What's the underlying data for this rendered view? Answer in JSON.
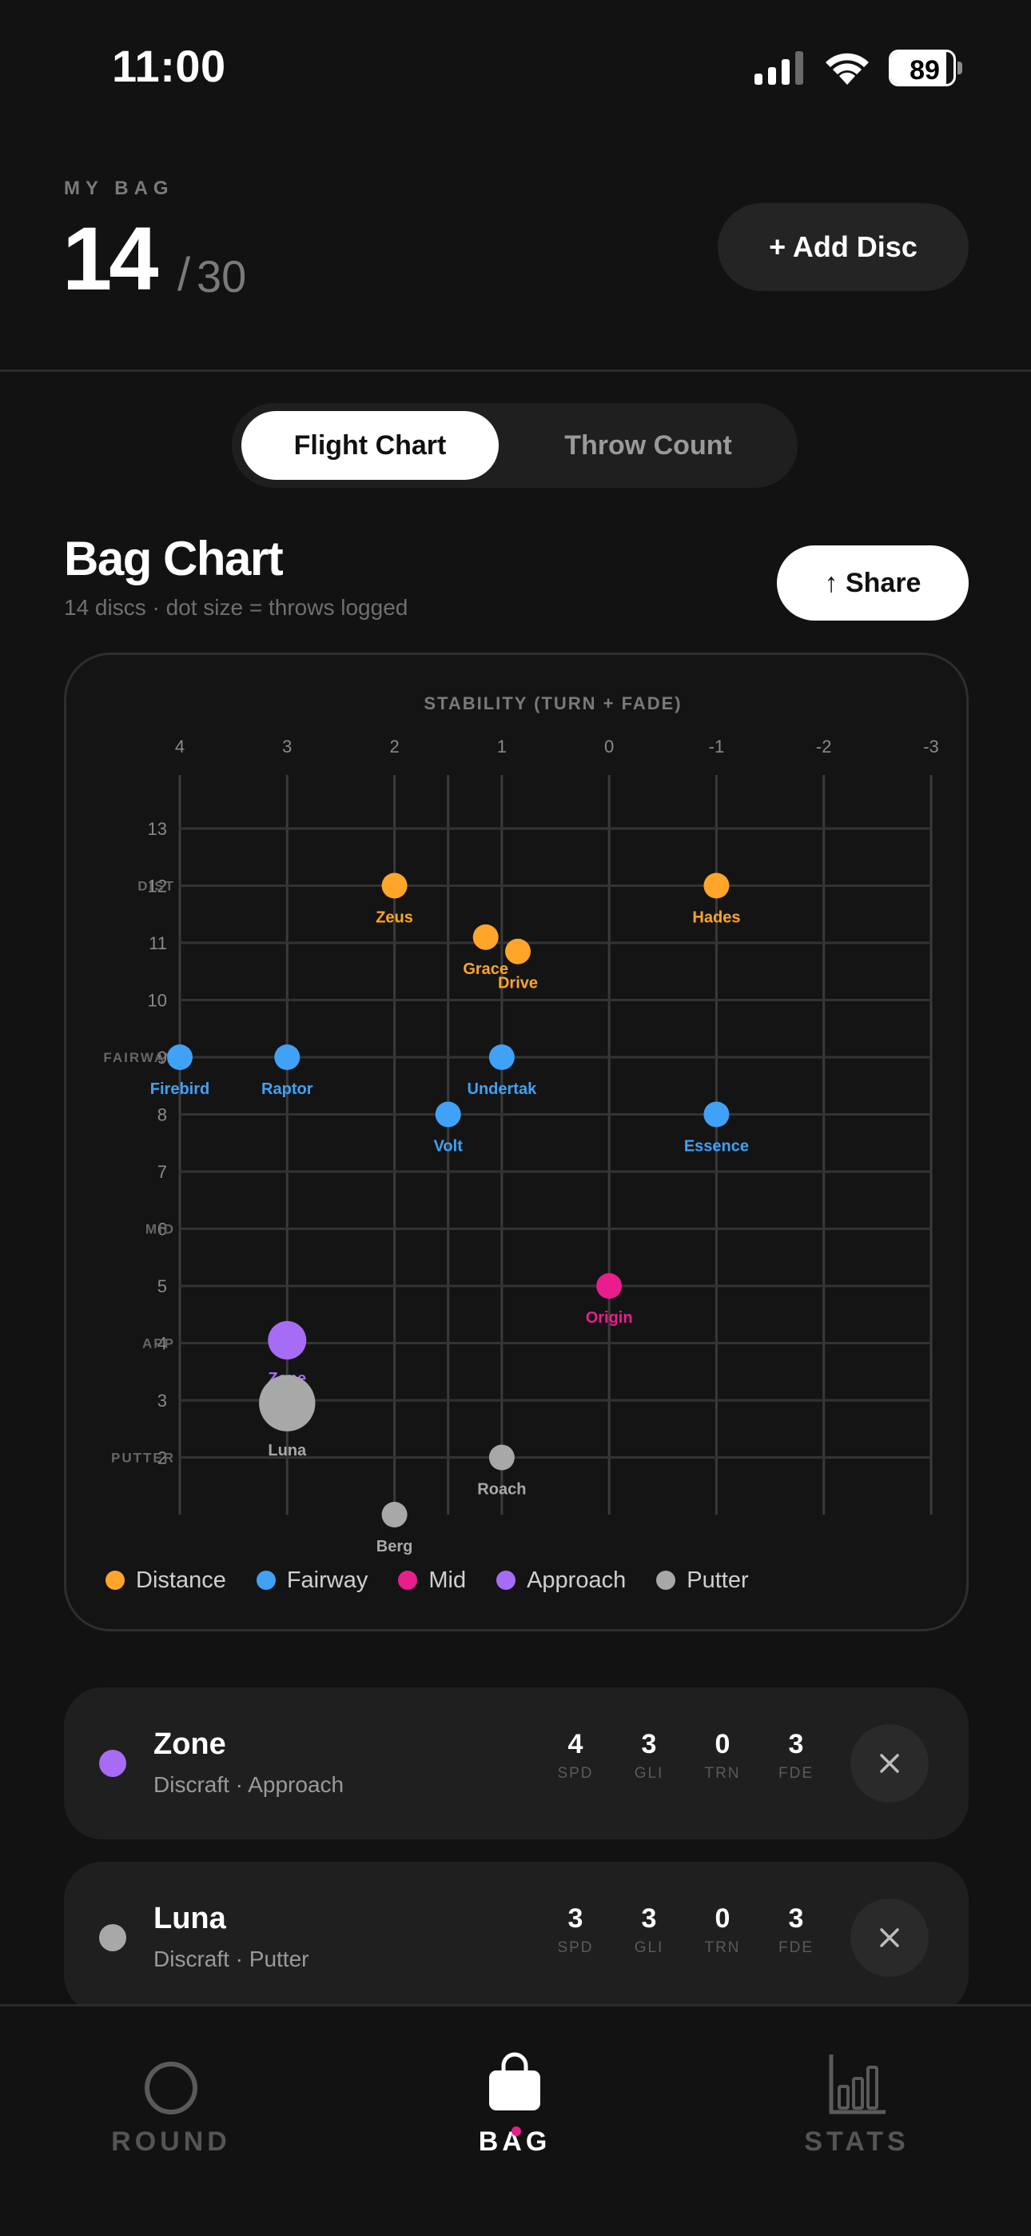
{
  "status_bar": {
    "time": "11:00",
    "battery": "89",
    "battery_level": 0.89
  },
  "header": {
    "eyebrow": "MY BAG",
    "count": "14",
    "separator": "/",
    "capacity": "30",
    "add_button": "+ Add Disc"
  },
  "segmented": {
    "options": [
      "Flight Chart",
      "Throw Count"
    ],
    "active": "Flight Chart"
  },
  "chart_section": {
    "title": "Bag Chart",
    "subtitle": "14 discs · dot size = throws logged",
    "share_button": "↑ Share"
  },
  "colors": {
    "distance": "#FFA52A",
    "fairway": "#3FA2F7",
    "mid": "#E91E8C",
    "approach": "#A66CF5",
    "putter": "#A8A8A8",
    "background": "#121212",
    "card": "#1F1F1F"
  },
  "chart_data": {
    "type": "scatter",
    "title": "",
    "xlabel": "STABILITY (TURN + FADE)",
    "ylabel": "",
    "x_ticks": [
      "4",
      "3",
      "2",
      "1",
      "0",
      "-1",
      "-2",
      "-3"
    ],
    "xlim": [
      4,
      -3
    ],
    "y_ticks": [
      "13",
      "12",
      "11",
      "10",
      "9",
      "8",
      "7",
      "6",
      "5",
      "4",
      "3",
      "2"
    ],
    "ylim": [
      1,
      13
    ],
    "category_labels": [
      {
        "label": "DIST",
        "y": 12
      },
      {
        "label": "FAIRWAY",
        "y": 9
      },
      {
        "label": "MID",
        "y": 6
      },
      {
        "label": "APP",
        "y": 4
      },
      {
        "label": "PUTTER",
        "y": 2
      }
    ],
    "grid": true,
    "points": [
      {
        "name": "Zeus",
        "x": 2,
        "y": 12,
        "group": "distance",
        "size": 1
      },
      {
        "name": "Hades",
        "x": -1,
        "y": 12,
        "group": "distance",
        "size": 1
      },
      {
        "name": "Grace",
        "x": 1.15,
        "y": 11.1,
        "group": "distance",
        "size": 1
      },
      {
        "name": "Drive",
        "x": 0.85,
        "y": 10.85,
        "group": "distance",
        "size": 1
      },
      {
        "name": "Firebird",
        "x": 4,
        "y": 9,
        "group": "fairway",
        "size": 1
      },
      {
        "name": "Raptor",
        "x": 3,
        "y": 9,
        "group": "fairway",
        "size": 1
      },
      {
        "name": "Undertak",
        "x": 1,
        "y": 9,
        "group": "fairway",
        "size": 1
      },
      {
        "name": "Volt",
        "x": 1.5,
        "y": 8,
        "group": "fairway",
        "size": 1
      },
      {
        "name": "Essence",
        "x": -1,
        "y": 8,
        "group": "fairway",
        "size": 1
      },
      {
        "name": "Origin",
        "x": 0,
        "y": 5,
        "group": "mid",
        "size": 1
      },
      {
        "name": "Zone",
        "x": 3,
        "y": 4.05,
        "group": "approach",
        "size": 1.5
      },
      {
        "name": "Luna",
        "x": 3,
        "y": 2.95,
        "group": "putter",
        "size": 2.2
      },
      {
        "name": "Roach",
        "x": 1,
        "y": 2,
        "group": "putter",
        "size": 1
      },
      {
        "name": "Berg",
        "x": 2,
        "y": 1,
        "group": "putter",
        "size": 1
      }
    ],
    "legend": [
      {
        "label": "Distance",
        "group": "distance"
      },
      {
        "label": "Fairway",
        "group": "fairway"
      },
      {
        "label": "Mid",
        "group": "mid"
      },
      {
        "label": "Approach",
        "group": "approach"
      },
      {
        "label": "Putter",
        "group": "putter"
      }
    ]
  },
  "discs": [
    {
      "name": "Zone",
      "meta": "Discraft · Approach",
      "group": "approach",
      "stats": [
        {
          "v": "4",
          "k": "SPD"
        },
        {
          "v": "3",
          "k": "GLI"
        },
        {
          "v": "0",
          "k": "TRN"
        },
        {
          "v": "3",
          "k": "FDE"
        }
      ]
    },
    {
      "name": "Luna",
      "meta": "Discraft · Putter",
      "group": "putter",
      "stats": [
        {
          "v": "3",
          "k": "SPD"
        },
        {
          "v": "3",
          "k": "GLI"
        },
        {
          "v": "0",
          "k": "TRN"
        },
        {
          "v": "3",
          "k": "FDE"
        }
      ]
    }
  ],
  "tabs": [
    {
      "label": "ROUND",
      "icon": "circle-icon"
    },
    {
      "label": "BAG",
      "icon": "bag-icon"
    },
    {
      "label": "STATS",
      "icon": "bar-chart-icon"
    }
  ],
  "active_tab": "BAG"
}
